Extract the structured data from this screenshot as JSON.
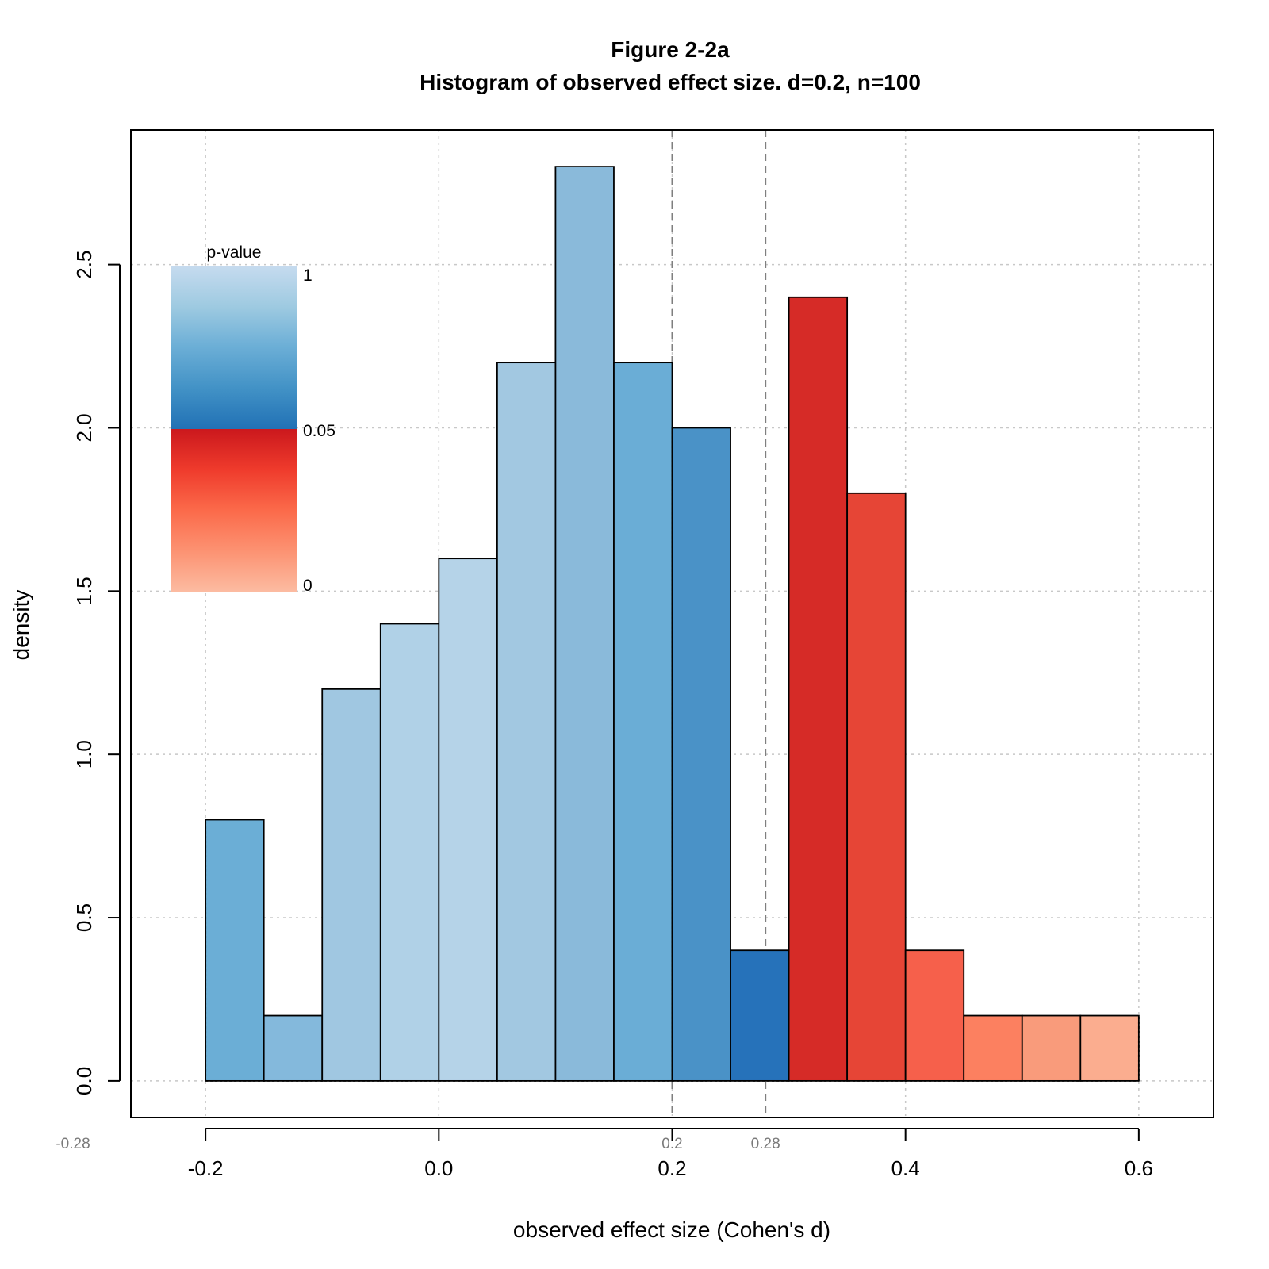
{
  "chart_data": {
    "type": "bar",
    "title": "Figure 2-2a",
    "subtitle": "Histogram of observed effect size. d=0.2, n=100",
    "xlabel": "observed effect size (Cohen's d)",
    "ylabel": "density",
    "xlim": [
      -0.264,
      0.664
    ],
    "ylim": [
      -0.112,
      2.912
    ],
    "grid": true,
    "x_ticks": [
      "-0.2",
      "0.0",
      "0.2",
      "0.4",
      "0.6"
    ],
    "x_tick_values": [
      -0.2,
      0.0,
      0.2,
      0.4,
      0.6
    ],
    "y_ticks": [
      "0.0",
      "0.5",
      "1.0",
      "1.5",
      "2.0",
      "2.5"
    ],
    "y_tick_values": [
      0.0,
      0.5,
      1.0,
      1.5,
      2.0,
      2.5
    ],
    "bins": [
      {
        "x0": -0.2,
        "x1": -0.15,
        "density": 0.8,
        "color": "#6baed6"
      },
      {
        "x0": -0.15,
        "x1": -0.1,
        "density": 0.2,
        "color": "#84b9dc"
      },
      {
        "x0": -0.1,
        "x1": -0.05,
        "density": 1.2,
        "color": "#a0c7e1"
      },
      {
        "x0": -0.05,
        "x1": 0.0,
        "density": 1.4,
        "color": "#b0d1e7"
      },
      {
        "x0": 0.0,
        "x1": 0.05,
        "density": 1.6,
        "color": "#b5d3e8"
      },
      {
        "x0": 0.05,
        "x1": 0.1,
        "density": 2.2,
        "color": "#a2c8e1"
      },
      {
        "x0": 0.1,
        "x1": 0.15,
        "density": 2.8,
        "color": "#8abada"
      },
      {
        "x0": 0.15,
        "x1": 0.2,
        "density": 2.2,
        "color": "#6aadd6"
      },
      {
        "x0": 0.2,
        "x1": 0.25,
        "density": 2.0,
        "color": "#4a92c7"
      },
      {
        "x0": 0.25,
        "x1": 0.3,
        "density": 0.4,
        "color": "#2672ba"
      },
      {
        "x0": 0.3,
        "x1": 0.35,
        "density": 2.4,
        "color": "#d62b27"
      },
      {
        "x0": 0.35,
        "x1": 0.4,
        "density": 1.8,
        "color": "#e64536"
      },
      {
        "x0": 0.4,
        "x1": 0.45,
        "density": 0.4,
        "color": "#f6604b"
      },
      {
        "x0": 0.45,
        "x1": 0.5,
        "density": 0.2,
        "color": "#fc8060"
      },
      {
        "x0": 0.5,
        "x1": 0.55,
        "density": 0.2,
        "color": "#f99b7b"
      },
      {
        "x0": 0.55,
        "x1": 0.6,
        "density": 0.2,
        "color": "#fbad8f"
      }
    ],
    "reference_lines": [
      {
        "x": 0.2,
        "label": "0.2"
      },
      {
        "x": 0.28,
        "label": "0.28"
      }
    ],
    "edge_annotation": {
      "value": -0.28,
      "label": "-0.28"
    },
    "legend": {
      "title": "p-value",
      "labels": [
        "1",
        "0.05",
        "0"
      ],
      "placement": "top-left",
      "blue_gradient": [
        "#c6dbef",
        "#9ecae1",
        "#6baed6",
        "#4292c6",
        "#2171b5"
      ],
      "red_gradient": [
        "#cb181d",
        "#ef3b2c",
        "#fb6a4a",
        "#fc9272",
        "#fcbba1"
      ]
    }
  }
}
